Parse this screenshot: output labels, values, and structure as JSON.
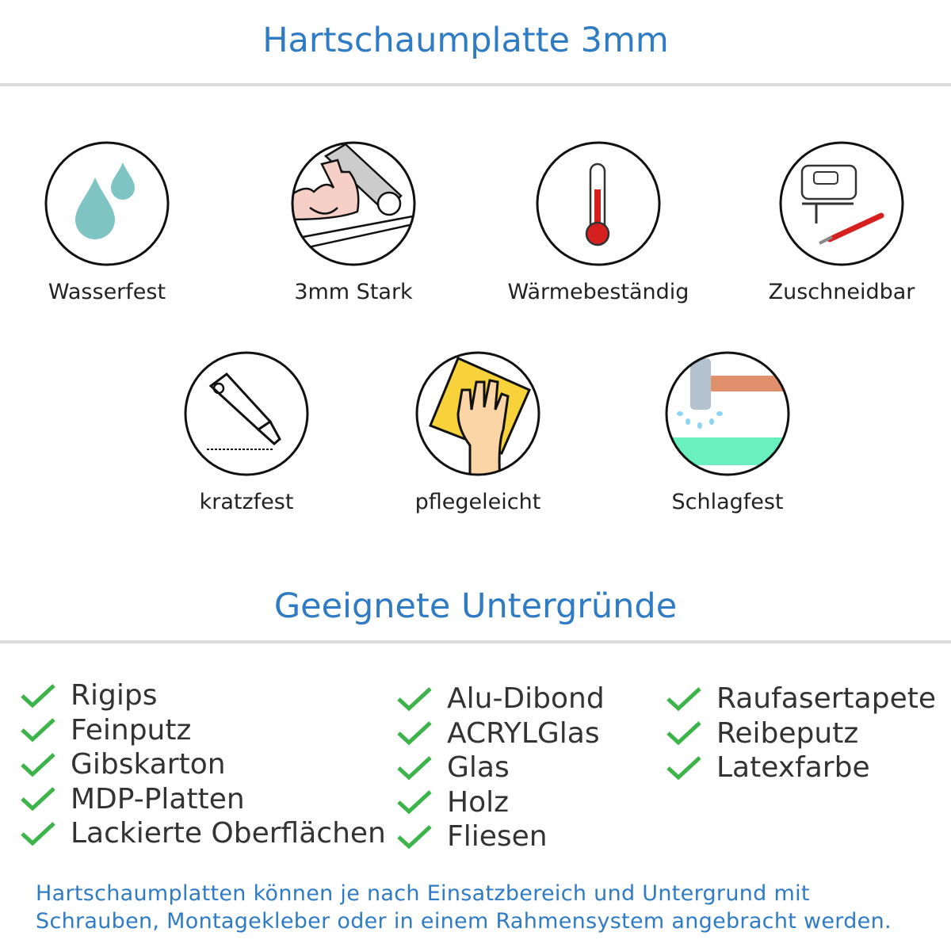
{
  "header": {
    "title": "Hartschaumplatte 3mm"
  },
  "features": [
    {
      "label": "Wasserfest",
      "icon": "water-drops-icon"
    },
    {
      "label": "3mm Stark",
      "icon": "flexed-arm-icon"
    },
    {
      "label": "Wärmebeständig",
      "icon": "thermometer-icon"
    },
    {
      "label": "Zuschneidbar",
      "icon": "jigsaw-cutter-icon"
    },
    {
      "label": "kratzfest",
      "icon": "box-cutter-icon"
    },
    {
      "label": "pflegeleicht",
      "icon": "hand-sponge-icon"
    },
    {
      "label": "Schlagfest",
      "icon": "hammer-icon"
    }
  ],
  "surfaces": {
    "title": "Geeignete Untergründe",
    "columns": [
      [
        "Rigips",
        "Feinputz",
        "Gibskarton",
        "MDP-Platten",
        "Lackierte Oberflächen"
      ],
      [
        "Alu-Dibond",
        "ACRYLGlas",
        "Glas",
        "Holz",
        "Fliesen"
      ],
      [
        "Raufasertapete",
        "Reibeputz",
        "Latexfarbe"
      ]
    ]
  },
  "footer": {
    "line1": "Hartschaumplatten können je nach Einsatzbereich und Untergrund mit",
    "line2": "Schrauben, Montagekleber oder in einem Rahmensystem angebracht werden."
  },
  "colors": {
    "accent": "#2f7bc4",
    "check": "#3cb44a",
    "separator": "#dcdcdc"
  }
}
